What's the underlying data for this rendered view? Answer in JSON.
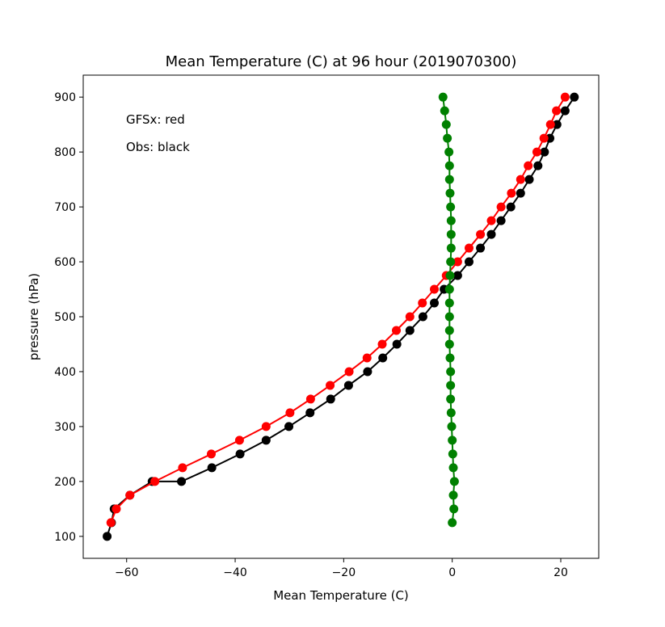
{
  "chart_data": {
    "type": "line",
    "title": "Mean Temperature (C) at 96 hour (2019070300)",
    "xlabel": "Mean Temperature (C)",
    "ylabel": "pressure (hPa)",
    "xlim": [
      -68,
      27
    ],
    "ylim": [
      60,
      940
    ],
    "xticks": [
      -60,
      -40,
      -20,
      0,
      20
    ],
    "yticks": [
      100,
      200,
      300,
      400,
      500,
      600,
      700,
      800,
      900
    ],
    "grid": false,
    "annotations": [
      "GFSx: red",
      "Obs: black"
    ],
    "series": [
      {
        "color": "#000000",
        "x": [
          22.5,
          20.8,
          19.3,
          18.0,
          17.0,
          15.8,
          14.2,
          12.6,
          10.8,
          9.0,
          7.2,
          5.2,
          3.1,
          1.0,
          -1.5,
          -3.3,
          -5.4,
          -7.8,
          -10.2,
          -12.8,
          -15.6,
          -19.1,
          -22.4,
          -26.2,
          -30.1,
          -34.3,
          -39.1,
          -44.3,
          -49.9,
          -55.3,
          -59.4,
          -62.3,
          -62.8,
          -63.6
        ],
        "y": [
          900,
          875,
          850,
          825,
          800,
          775,
          750,
          725,
          700,
          675,
          650,
          625,
          600,
          575,
          550,
          525,
          500,
          475,
          450,
          425,
          400,
          375,
          350,
          325,
          300,
          275,
          250,
          225,
          200,
          200,
          175,
          150,
          125,
          100
        ]
      },
      {
        "color": "#ff0000",
        "x": [
          20.8,
          19.2,
          18.1,
          16.9,
          15.6,
          14.0,
          12.6,
          10.9,
          9.0,
          7.2,
          5.2,
          3.1,
          1.0,
          -1.1,
          -3.3,
          -5.5,
          -7.8,
          -10.3,
          -12.9,
          -15.7,
          -19.0,
          -22.5,
          -26.1,
          -29.9,
          -34.3,
          -39.2,
          -44.4,
          -49.7,
          -54.8,
          -59.4,
          -61.9,
          -62.9
        ],
        "y": [
          900,
          875,
          850,
          825,
          800,
          775,
          750,
          725,
          700,
          675,
          650,
          625,
          600,
          575,
          550,
          525,
          500,
          475,
          450,
          425,
          400,
          375,
          350,
          325,
          300,
          275,
          250,
          225,
          200,
          175,
          150,
          125
        ]
      },
      {
        "color": "#008000",
        "x": [
          -1.7,
          -1.4,
          -1.1,
          -0.9,
          -0.6,
          -0.5,
          -0.5,
          -0.4,
          -0.3,
          -0.2,
          -0.2,
          -0.2,
          -0.3,
          -0.4,
          -0.5,
          -0.5,
          -0.5,
          -0.5,
          -0.5,
          -0.4,
          -0.3,
          -0.3,
          -0.3,
          -0.2,
          -0.1,
          0.0,
          0.1,
          0.2,
          0.4,
          0.2,
          0.3,
          0.0
        ],
        "y": [
          900,
          875,
          850,
          825,
          800,
          775,
          750,
          725,
          700,
          675,
          650,
          625,
          600,
          575,
          550,
          525,
          500,
          475,
          450,
          425,
          400,
          375,
          350,
          325,
          300,
          275,
          250,
          225,
          200,
          175,
          150,
          125
        ]
      }
    ]
  }
}
